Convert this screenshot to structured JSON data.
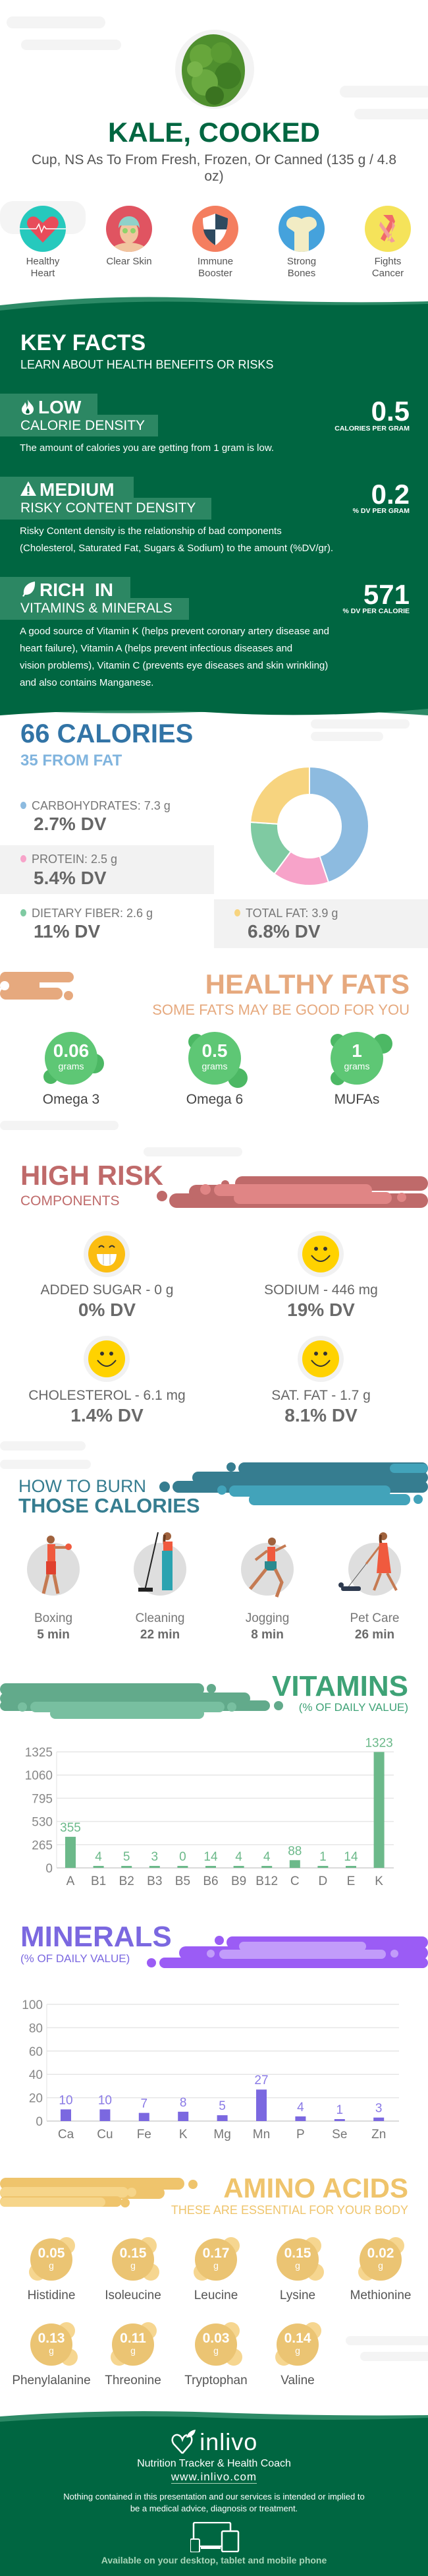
{
  "header": {
    "title": "KALE, COOKED",
    "subtitle": "Cup, NS As To From Fresh, Frozen, Or Canned (135 g / 4.8 oz)",
    "image_icon": "kale-photo"
  },
  "benefits": [
    {
      "label": "Healthy Heart",
      "icon": "heart-icon",
      "color": "#26c9bd"
    },
    {
      "label": "Clear Skin",
      "icon": "face-mask-icon",
      "color": "#e05461"
    },
    {
      "label": "Immune Booster",
      "icon": "shield-icon",
      "color": "#f47e5f"
    },
    {
      "label": "Strong Bones",
      "icon": "bone-icon",
      "color": "#45a2dc"
    },
    {
      "label": "Fights Cancer",
      "icon": "ribbon-icon",
      "color": "#f5e35a"
    }
  ],
  "key_facts": {
    "title": "KEY FACTS",
    "subtitle": "LEARN ABOUT HEALTH BENEFITS OR RISKS",
    "items": [
      {
        "icon": "flame-icon",
        "level": "LOW",
        "label": "CALORIE DENSITY",
        "value": "0.5",
        "unit": "CALORIES PER GRAM",
        "description": "The amount of calories you are getting from 1 gram is low."
      },
      {
        "icon": "warning-icon",
        "level": "MEDIUM",
        "label": "RISKY CONTENT DENSITY",
        "value": "0.2",
        "unit": "% DV PER GRAM",
        "description": "Risky Content density is the relationship of bad components\n(Cholesterol, Saturated Fat, Sugars & Sodium) to the amount (%DV/gr)."
      },
      {
        "icon": "leaf-icon",
        "level": "RICH  IN",
        "label": "VITAMINS & MINERALS",
        "value": "571",
        "unit": "% DV PER CALORIE",
        "description": "A good source of Vitamin K (helps prevent coronary artery disease and\nheart failure), Vitamin A (helps prevent infectious diseases and\nvision problems), Vitamin C (prevents eye diseases and skin wrinkling)\nand also contains Manganese."
      }
    ]
  },
  "calories": {
    "title": "66 CALORIES",
    "subtitle": "35 FROM FAT",
    "nutrients": [
      {
        "label": "CARBOHYDRATES: 7.3 g",
        "grams": 7.3,
        "dv": "2.7% DV",
        "color": "#8dbbe0"
      },
      {
        "label": "PROTEIN: 2.5 g",
        "grams": 2.5,
        "dv": "5.4% DV",
        "color": "#f7a3c9"
      },
      {
        "label": "DIETARY FIBER: 2.6 g",
        "grams": 2.6,
        "dv": "11% DV",
        "color": "#7fcaa2"
      },
      {
        "label": "TOTAL FAT: 3.9 g",
        "grams": 3.9,
        "dv": "6.8% DV",
        "color": "#f7d47f"
      }
    ]
  },
  "healthy_fats": {
    "title": "HEALTHY FATS",
    "subtitle": "SOME FATS MAY BE GOOD FOR YOU",
    "items": [
      {
        "value": "0.06",
        "unit": "grams",
        "label": "Omega 3"
      },
      {
        "value": "0.5",
        "unit": "grams",
        "label": "Omega 6"
      },
      {
        "value": "1",
        "unit": "grams",
        "label": "MUFAs"
      }
    ]
  },
  "high_risk": {
    "title": "HIGH RISK",
    "subtitle": "COMPONENTS",
    "items": [
      {
        "icon": "grin-icon",
        "label": "ADDED SUGAR - 0 g",
        "dv": "0% DV"
      },
      {
        "icon": "smile-icon",
        "label": "SODIUM - 446 mg",
        "dv": "19% DV"
      },
      {
        "icon": "smile-icon",
        "label": "CHOLESTEROL - 6.1 mg",
        "dv": "1.4% DV"
      },
      {
        "icon": "smile-icon",
        "label": "SAT. FAT - 1.7 g",
        "dv": "8.1% DV"
      }
    ]
  },
  "burn": {
    "title_line1": "HOW TO BURN",
    "title_line2": "THOSE CALORIES",
    "items": [
      {
        "icon": "boxer-icon",
        "label": "Boxing",
        "time": "5 min"
      },
      {
        "icon": "cleaner-icon",
        "label": "Cleaning",
        "time": "22 min"
      },
      {
        "icon": "jogger-icon",
        "label": "Jogging",
        "time": "8 min"
      },
      {
        "icon": "dog-walker-icon",
        "label": "Pet Care",
        "time": "26 min"
      }
    ]
  },
  "vitamins": {
    "title": "VITAMINS",
    "subtitle": "(% OF DAILY VALUE)"
  },
  "minerals": {
    "title": "MINERALS",
    "subtitle": "(% OF DAILY VALUE)"
  },
  "chart_data": [
    {
      "type": "bar",
      "title": "VITAMINS",
      "subtitle": "(% OF DAILY VALUE)",
      "categories": [
        "A",
        "B1",
        "B2",
        "B3",
        "B5",
        "B6",
        "B9",
        "B12",
        "C",
        "D",
        "E",
        "K"
      ],
      "values": [
        355,
        4,
        5,
        3,
        0,
        14,
        4,
        4,
        88,
        1,
        14,
        1323
      ],
      "yticks": [
        0,
        265,
        530,
        795,
        1060,
        1325
      ],
      "ylim": [
        0,
        1325
      ],
      "grid": true,
      "color": "#6cb98a"
    },
    {
      "type": "bar",
      "title": "MINERALS",
      "subtitle": "(% OF DAILY VALUE)",
      "categories": [
        "Ca",
        "Cu",
        "Fe",
        "K",
        "Mg",
        "Mn",
        "P",
        "Se",
        "Zn"
      ],
      "values": [
        10,
        10,
        7,
        8,
        5,
        27,
        4,
        1,
        3
      ],
      "yticks": [
        0,
        20,
        40,
        60,
        80,
        100
      ],
      "ylim": [
        0,
        100
      ],
      "grid": true,
      "color": "#7b68e0"
    }
  ],
  "amino_acids": {
    "title": "AMINO ACIDS",
    "subtitle": "THESE ARE ESSENTIAL FOR YOUR BODY",
    "items": [
      {
        "value": "0.05",
        "unit": "g",
        "label": "Histidine"
      },
      {
        "value": "0.15",
        "unit": "g",
        "label": "Isoleucine"
      },
      {
        "value": "0.17",
        "unit": "g",
        "label": "Leucine"
      },
      {
        "value": "0.15",
        "unit": "g",
        "label": "Lysine"
      },
      {
        "value": "0.02",
        "unit": "g",
        "label": "Methionine"
      },
      {
        "value": "0.13",
        "unit": "g",
        "label": "Phenylalanine"
      },
      {
        "value": "0.11",
        "unit": "g",
        "label": "Threonine"
      },
      {
        "value": "0.03",
        "unit": "g",
        "label": "Tryptophan"
      },
      {
        "value": "0.14",
        "unit": "g",
        "label": "Valine"
      }
    ]
  },
  "footer": {
    "logo": "inlivo",
    "tagline": "Nutrition Tracker & Health Coach",
    "url": "www.inlivo.com",
    "disclaimer": "Nothing contained in this presentation and our services is intended or implied to be a medical advice, diagnosis or treatment.",
    "available": "Available on your desktop, tablet and mobile phone"
  },
  "colors": {
    "brand_green": "#006641",
    "band_green": "#2c8763",
    "calories_blue": "#3274a6",
    "fats_orange": "#e6a97e",
    "risk_red": "#bf6a6a",
    "burn_teal": "#367d90",
    "vitamins_green": "#3ea276",
    "minerals_purple": "#7b68e0",
    "amino_yellow": "#efc46c"
  }
}
